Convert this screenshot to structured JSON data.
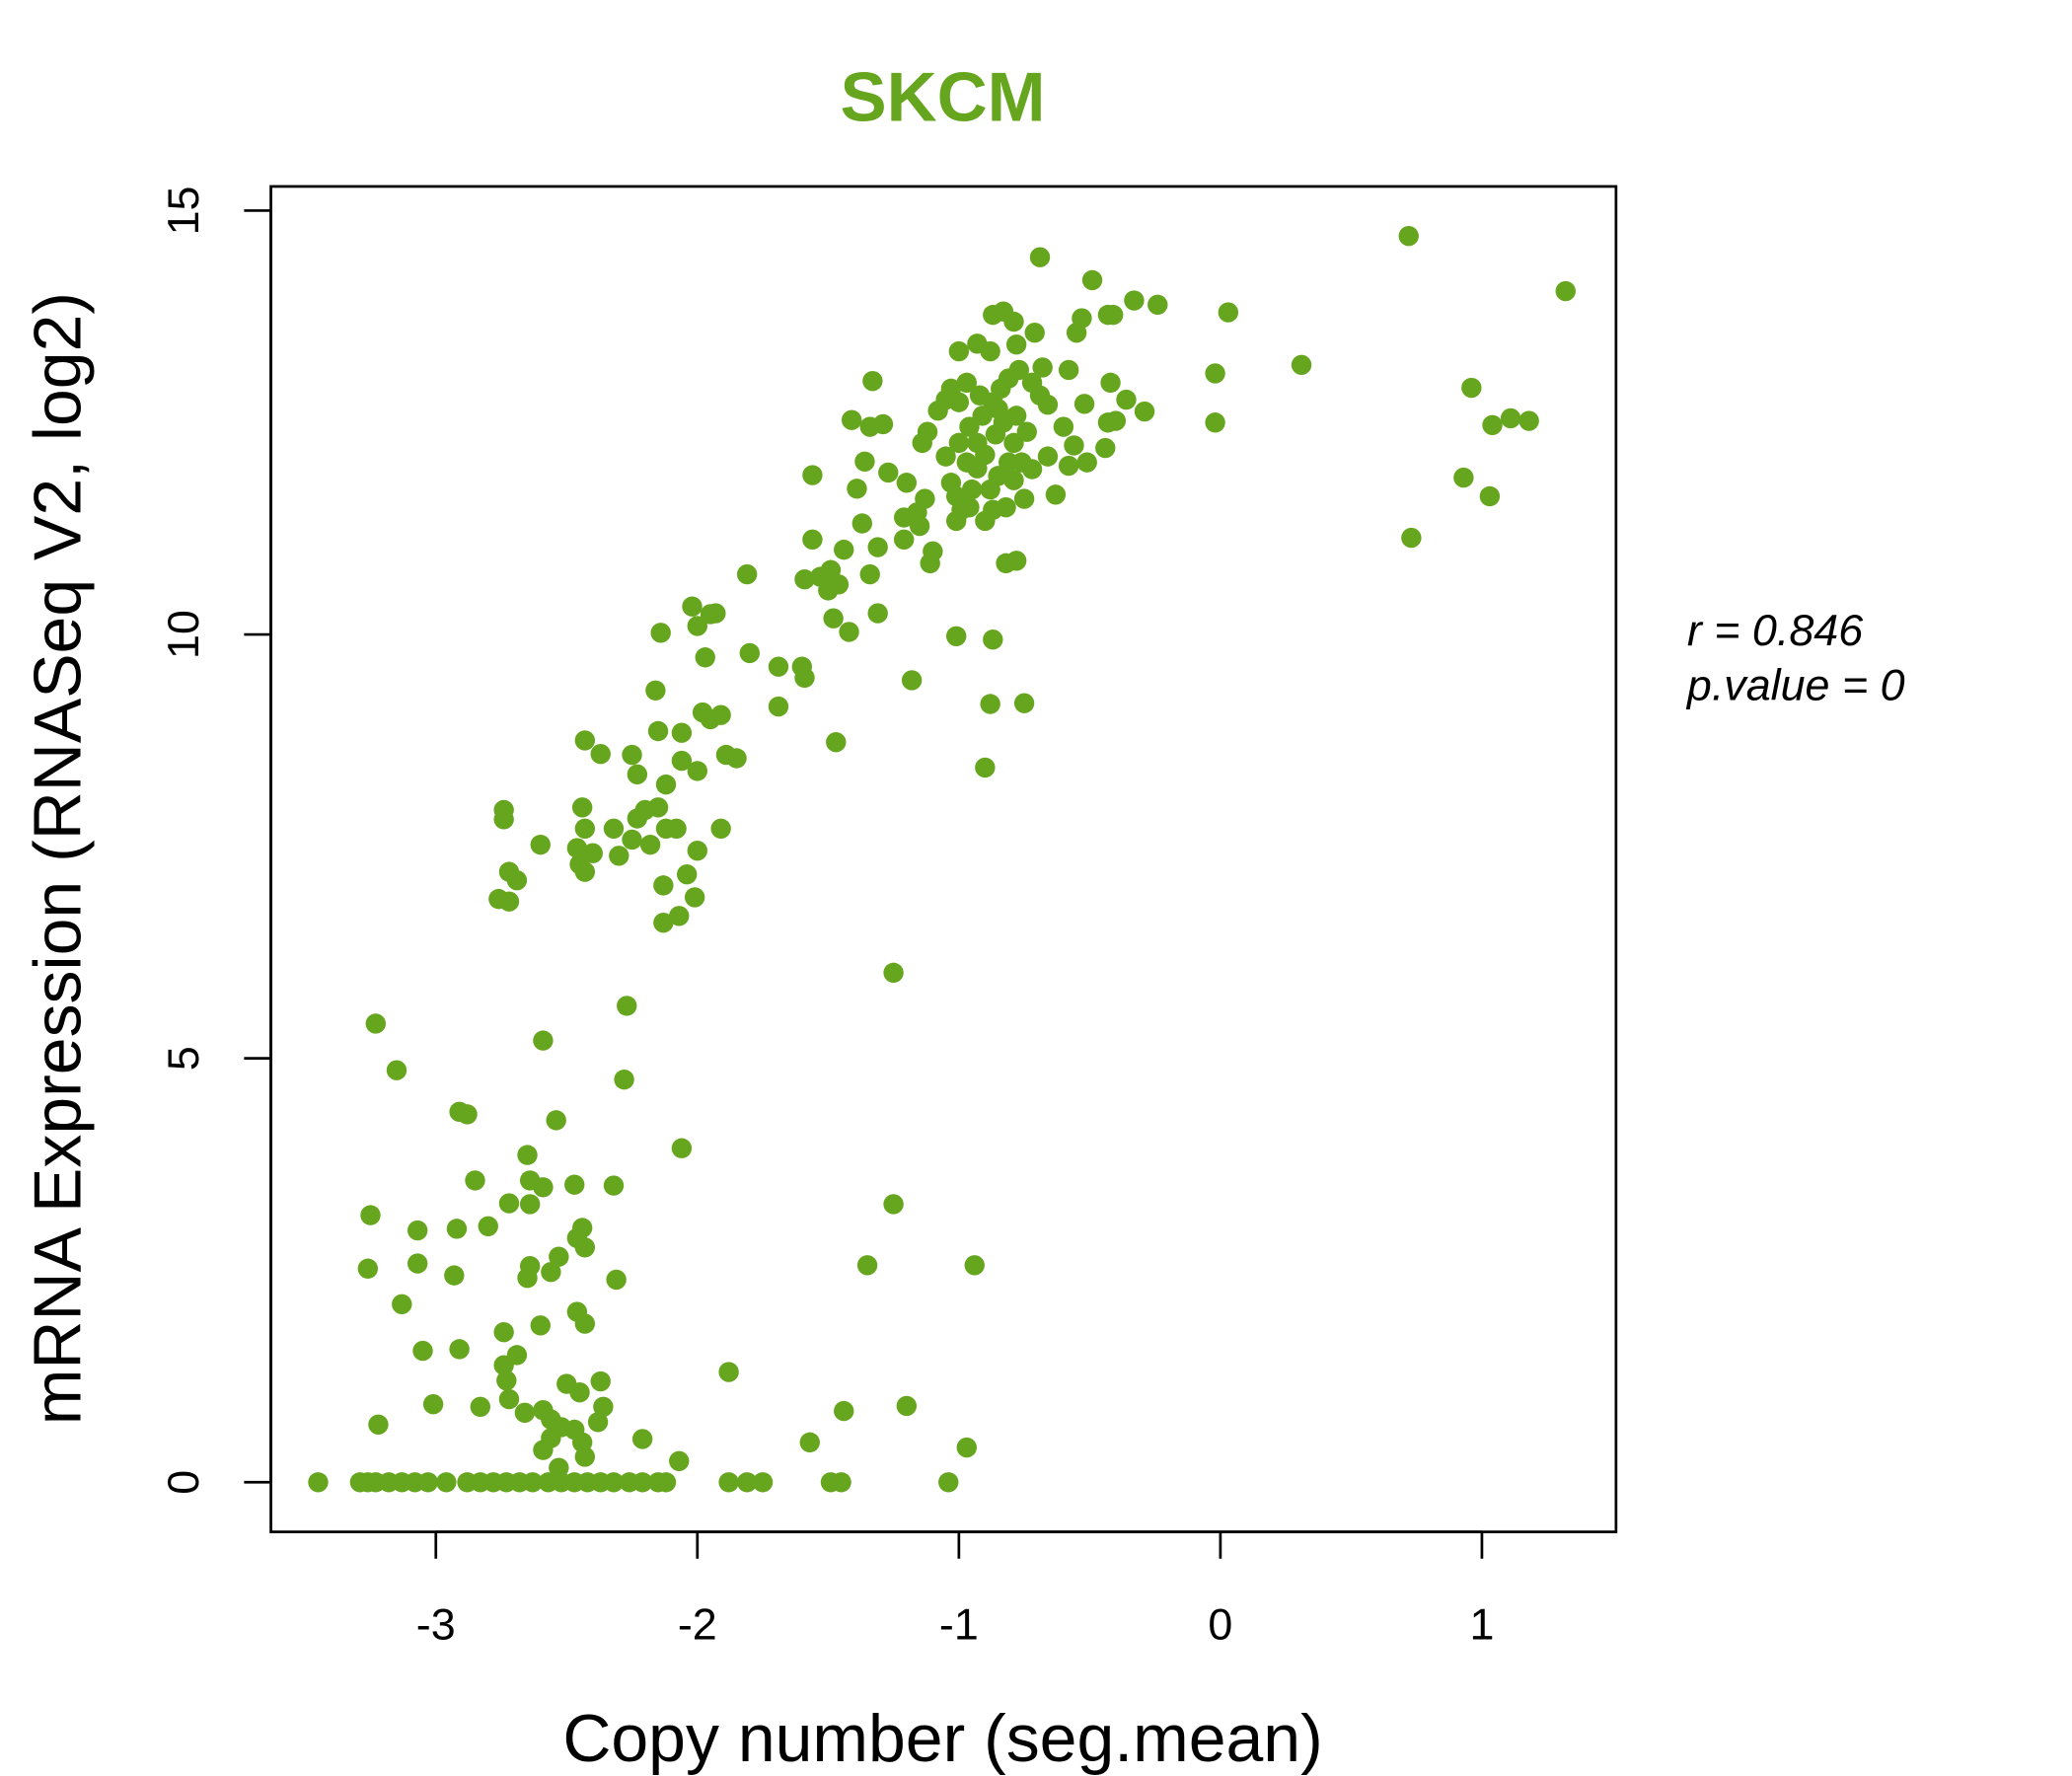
{
  "chart_data": {
    "type": "scatter",
    "title": "SKCM",
    "xlabel": "Copy number (seg.mean)",
    "ylabel": "mRNA Expression (RNASeq V2, log2)",
    "xlim": [
      -3.64,
      1.5
    ],
    "ylim": [
      -0.6,
      15.25
    ],
    "xticks": [
      -3,
      -2,
      -1,
      0,
      1
    ],
    "xtick_labels": [
      "-3",
      "-2",
      "-1",
      "0",
      "1"
    ],
    "yticks": [
      0,
      5,
      10,
      15
    ],
    "ytick_labels": [
      "0",
      "5",
      "10",
      "15"
    ],
    "grid": false,
    "color": "#66a61e",
    "annotation": {
      "r_label": "r = 0.846",
      "p_label": "p.value = 0"
    },
    "points": [
      [
        -3.45,
        0
      ],
      [
        -3.29,
        0
      ],
      [
        -3.26,
        0
      ],
      [
        -3.23,
        0
      ],
      [
        -3.18,
        0
      ],
      [
        -3.13,
        0
      ],
      [
        -3.08,
        0
      ],
      [
        -3.03,
        0
      ],
      [
        -2.96,
        0
      ],
      [
        -2.88,
        0
      ],
      [
        -2.83,
        0
      ],
      [
        -2.78,
        0
      ],
      [
        -2.73,
        0
      ],
      [
        -2.68,
        0
      ],
      [
        -2.63,
        0
      ],
      [
        -2.57,
        0
      ],
      [
        -2.52,
        0
      ],
      [
        -2.47,
        0
      ],
      [
        -2.42,
        0
      ],
      [
        -2.37,
        0
      ],
      [
        -2.32,
        0
      ],
      [
        -2.26,
        0
      ],
      [
        -2.21,
        0
      ],
      [
        -2.15,
        0
      ],
      [
        -2.12,
        0
      ],
      [
        -1.88,
        0
      ],
      [
        -1.81,
        0
      ],
      [
        -1.75,
        0
      ],
      [
        -1.49,
        0
      ],
      [
        -1.45,
        0
      ],
      [
        -1.04,
        0
      ],
      [
        -3.23,
        5.41
      ],
      [
        -3.15,
        4.86
      ],
      [
        -2.91,
        4.37
      ],
      [
        -2.88,
        4.34
      ],
      [
        -2.59,
        5.21
      ],
      [
        -2.27,
        5.62
      ],
      [
        -2.28,
        4.75
      ],
      [
        -2.54,
        4.27
      ],
      [
        -2.06,
        3.94
      ],
      [
        -2.65,
        3.86
      ],
      [
        -2.85,
        3.56
      ],
      [
        -2.64,
        3.56
      ],
      [
        -2.59,
        3.48
      ],
      [
        -2.47,
        3.51
      ],
      [
        -2.32,
        3.5
      ],
      [
        -2.72,
        3.29
      ],
      [
        -2.64,
        3.28
      ],
      [
        -3.25,
        3.15
      ],
      [
        -3.07,
        2.97
      ],
      [
        -2.92,
        2.99
      ],
      [
        -2.8,
        3.02
      ],
      [
        -2.44,
        3.0
      ],
      [
        -2.46,
        2.88
      ],
      [
        -2.43,
        2.77
      ],
      [
        -2.53,
        2.66
      ],
      [
        -3.26,
        2.52
      ],
      [
        -3.07,
        2.58
      ],
      [
        -2.64,
        2.55
      ],
      [
        -2.56,
        2.48
      ],
      [
        -2.65,
        2.41
      ],
      [
        -2.93,
        2.44
      ],
      [
        -2.31,
        2.39
      ],
      [
        -3.13,
        2.1
      ],
      [
        -2.46,
        2.01
      ],
      [
        -2.43,
        1.87
      ],
      [
        -2.6,
        1.85
      ],
      [
        -2.74,
        1.77
      ],
      [
        -3.05,
        1.55
      ],
      [
        -2.91,
        1.57
      ],
      [
        -2.69,
        1.5
      ],
      [
        -2.74,
        1.38
      ],
      [
        -2.73,
        1.2
      ],
      [
        -2.5,
        1.16
      ],
      [
        -2.37,
        1.19
      ],
      [
        -2.45,
        1.06
      ],
      [
        -2.72,
        0.98
      ],
      [
        -3.01,
        0.92
      ],
      [
        -2.83,
        0.89
      ],
      [
        -2.36,
        0.89
      ],
      [
        -2.66,
        0.82
      ],
      [
        -2.59,
        0.85
      ],
      [
        -2.56,
        0.74
      ],
      [
        -3.22,
        0.68
      ],
      [
        -2.52,
        0.65
      ],
      [
        -2.47,
        0.62
      ],
      [
        -2.38,
        0.71
      ],
      [
        -2.56,
        0.52
      ],
      [
        -2.44,
        0.47
      ],
      [
        -2.21,
        0.51
      ],
      [
        -2.59,
        0.38
      ],
      [
        -2.43,
        0.3
      ],
      [
        -2.53,
        0.17
      ],
      [
        -2.07,
        0.25
      ],
      [
        -1.88,
        1.3
      ],
      [
        -1.44,
        0.84
      ],
      [
        -1.2,
        0.9
      ],
      [
        -1.57,
        0.47
      ],
      [
        -0.97,
        0.41
      ],
      [
        -1.25,
        6.01
      ],
      [
        -1.25,
        3.28
      ],
      [
        -1.35,
        2.56
      ],
      [
        -0.94,
        2.56
      ],
      [
        -2.76,
        6.88
      ],
      [
        -2.72,
        6.85
      ],
      [
        -2.72,
        7.2
      ],
      [
        -2.69,
        7.1
      ],
      [
        -2.6,
        7.52
      ],
      [
        -2.74,
        7.93
      ],
      [
        -2.74,
        7.82
      ],
      [
        -2.44,
        7.96
      ],
      [
        -2.43,
        7.71
      ],
      [
        -2.46,
        7.48
      ],
      [
        -2.45,
        7.29
      ],
      [
        -2.43,
        7.2
      ],
      [
        -2.4,
        7.42
      ],
      [
        -2.32,
        7.71
      ],
      [
        -2.3,
        7.39
      ],
      [
        -2.25,
        7.58
      ],
      [
        -2.23,
        7.83
      ],
      [
        -2.2,
        7.93
      ],
      [
        -2.18,
        7.52
      ],
      [
        -2.15,
        7.96
      ],
      [
        -2.12,
        7.71
      ],
      [
        -2.08,
        7.71
      ],
      [
        -2.13,
        7.04
      ],
      [
        -2.13,
        6.6
      ],
      [
        -2.07,
        6.68
      ],
      [
        -2.04,
        7.17
      ],
      [
        -2.01,
        6.9
      ],
      [
        -2.0,
        7.45
      ],
      [
        -1.91,
        7.71
      ],
      [
        -2.43,
        8.75
      ],
      [
        -2.37,
        8.59
      ],
      [
        -2.25,
        8.58
      ],
      [
        -2.23,
        8.35
      ],
      [
        -2.15,
        8.86
      ],
      [
        -2.12,
        8.23
      ],
      [
        -2.06,
        8.84
      ],
      [
        -2.06,
        8.51
      ],
      [
        -2.0,
        8.39
      ],
      [
        -1.98,
        9.08
      ],
      [
        -1.95,
        9.0
      ],
      [
        -1.91,
        9.05
      ],
      [
        -1.89,
        8.58
      ],
      [
        -1.85,
        8.54
      ],
      [
        -2.16,
        9.34
      ],
      [
        -1.69,
        9.15
      ],
      [
        -1.69,
        9.62
      ],
      [
        -1.6,
        9.62
      ],
      [
        -1.59,
        9.49
      ],
      [
        -1.97,
        9.73
      ],
      [
        -1.8,
        9.78
      ],
      [
        -2.14,
        10.02
      ],
      [
        -2.0,
        10.1
      ],
      [
        -1.95,
        10.24
      ],
      [
        -1.93,
        10.25
      ],
      [
        -2.02,
        10.33
      ],
      [
        -1.81,
        10.71
      ],
      [
        -1.47,
        8.73
      ],
      [
        -1.42,
        10.03
      ],
      [
        -1.48,
        10.19
      ],
      [
        -1.31,
        10.25
      ],
      [
        -1.59,
        10.65
      ],
      [
        -1.53,
        10.68
      ],
      [
        -1.5,
        10.52
      ],
      [
        -1.46,
        10.59
      ],
      [
        -1.49,
        10.76
      ],
      [
        -1.44,
        11.0
      ],
      [
        -1.34,
        10.71
      ],
      [
        -1.56,
        11.12
      ],
      [
        -1.31,
        11.03
      ],
      [
        -1.37,
        11.31
      ],
      [
        -1.21,
        11.12
      ],
      [
        -1.18,
        9.46
      ],
      [
        -1.01,
        9.98
      ],
      [
        -0.87,
        9.94
      ],
      [
        -0.88,
        9.18
      ],
      [
        -0.75,
        9.19
      ],
      [
        -0.9,
        8.43
      ],
      [
        -1.11,
        10.84
      ],
      [
        -1.1,
        10.98
      ],
      [
        -0.82,
        10.84
      ],
      [
        -0.78,
        10.87
      ],
      [
        0.73,
        11.14
      ],
      [
        -1.56,
        11.88
      ],
      [
        -1.39,
        11.72
      ],
      [
        -1.36,
        12.04
      ],
      [
        -1.41,
        12.53
      ],
      [
        -1.34,
        12.45
      ],
      [
        -1.29,
        12.48
      ],
      [
        -1.33,
        12.99
      ],
      [
        -1.27,
        11.91
      ],
      [
        -1.2,
        11.79
      ],
      [
        -1.21,
        11.38
      ],
      [
        -1.16,
        11.44
      ],
      [
        -1.13,
        11.6
      ],
      [
        -1.15,
        11.28
      ],
      [
        -1.14,
        12.26
      ],
      [
        -1.12,
        12.39
      ],
      [
        -1.08,
        12.64
      ],
      [
        -1.05,
        12.77
      ],
      [
        -1.03,
        12.9
      ],
      [
        -1.0,
        13.34
      ],
      [
        -0.93,
        13.43
      ],
      [
        -0.88,
        13.34
      ],
      [
        -0.87,
        13.77
      ],
      [
        -0.83,
        13.81
      ],
      [
        -0.79,
        13.69
      ],
      [
        -0.78,
        13.42
      ],
      [
        -0.71,
        13.56
      ],
      [
        -0.69,
        14.45
      ],
      [
        -0.68,
        13.15
      ],
      [
        -0.58,
        13.12
      ],
      [
        -0.55,
        13.56
      ],
      [
        -0.53,
        13.73
      ],
      [
        -0.49,
        14.18
      ],
      [
        -0.43,
        13.77
      ],
      [
        -0.41,
        13.77
      ],
      [
        -0.33,
        13.94
      ],
      [
        -0.24,
        13.89
      ],
      [
        -0.42,
        12.97
      ],
      [
        -0.36,
        12.77
      ],
      [
        -0.29,
        12.63
      ],
      [
        -0.52,
        12.72
      ],
      [
        -0.43,
        12.5
      ],
      [
        -0.4,
        12.52
      ],
      [
        -0.44,
        12.2
      ],
      [
        -0.51,
        12.03
      ],
      [
        -0.58,
        11.99
      ],
      [
        -0.63,
        11.65
      ],
      [
        -0.56,
        12.23
      ],
      [
        -0.6,
        12.45
      ],
      [
        -0.66,
        12.71
      ],
      [
        -0.74,
        12.39
      ],
      [
        -0.75,
        11.6
      ],
      [
        -0.82,
        11.5
      ],
      [
        -0.9,
        11.34
      ],
      [
        -1.01,
        11.34
      ],
      [
        -0.99,
        11.47
      ],
      [
        -1.03,
        11.79
      ],
      [
        -0.97,
        12.03
      ],
      [
        -0.93,
        12.26
      ],
      [
        -0.91,
        12.58
      ],
      [
        -0.87,
        12.74
      ],
      [
        -0.84,
        12.9
      ],
      [
        -0.81,
        13.02
      ],
      [
        -0.77,
        13.12
      ],
      [
        -0.72,
        12.97
      ],
      [
        -0.69,
        12.82
      ],
      [
        -0.93,
        11.96
      ],
      [
        -0.9,
        12.12
      ],
      [
        -0.86,
        12.36
      ],
      [
        -0.83,
        12.5
      ],
      [
        -0.79,
        12.26
      ],
      [
        -0.76,
        12.03
      ],
      [
        -0.85,
        11.87
      ],
      [
        -0.95,
        11.71
      ],
      [
        -0.88,
        11.71
      ],
      [
        -0.79,
        11.82
      ],
      [
        -0.72,
        11.95
      ],
      [
        -0.66,
        12.1
      ],
      [
        -1.0,
        12.26
      ],
      [
        -1.05,
        12.1
      ],
      [
        -0.96,
        12.45
      ],
      [
        -0.92,
        12.82
      ],
      [
        -1.0,
        12.74
      ],
      [
        -0.97,
        12.97
      ],
      [
        -0.85,
        12.66
      ],
      [
        -0.78,
        12.58
      ],
      [
        -0.81,
        12.03
      ],
      [
        -0.87,
        11.47
      ],
      [
        -0.96,
        11.5
      ],
      [
        -1.01,
        11.63
      ],
      [
        -0.02,
        13.08
      ],
      [
        0.03,
        13.8
      ],
      [
        -0.02,
        12.5
      ],
      [
        0.31,
        13.18
      ],
      [
        0.72,
        14.7
      ],
      [
        1.32,
        14.05
      ],
      [
        0.96,
        12.91
      ],
      [
        1.04,
        12.47
      ],
      [
        1.11,
        12.55
      ],
      [
        1.18,
        12.52
      ],
      [
        0.93,
        11.85
      ],
      [
        1.03,
        11.63
      ]
    ]
  }
}
